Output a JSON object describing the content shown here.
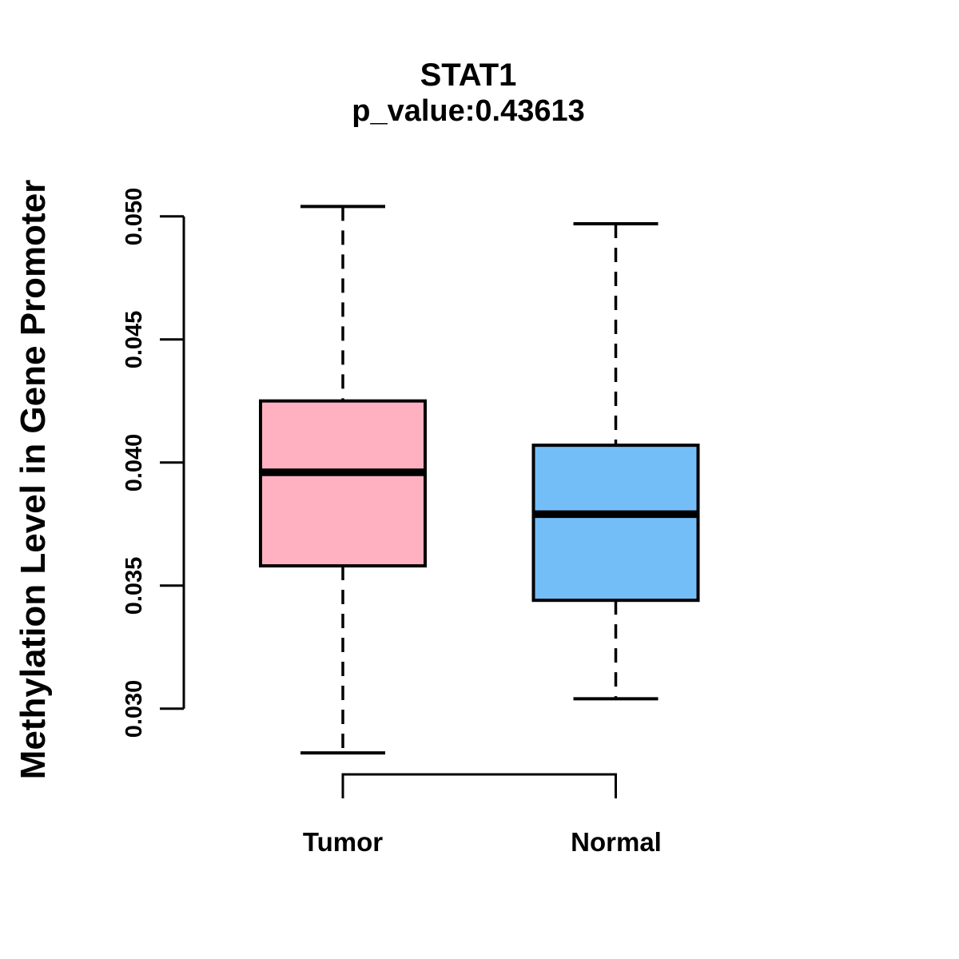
{
  "chart_data": {
    "type": "boxplot",
    "title": "STAT1",
    "subtitle": "p_value:0.43613",
    "ylabel": "Methylation Level in Gene Promoter",
    "xlabel": "",
    "categories": [
      "Tumor",
      "Normal"
    ],
    "y_tick_labels": [
      "0.030",
      "0.035",
      "0.040",
      "0.045",
      "0.050"
    ],
    "y_tick_values": [
      0.03,
      0.035,
      0.04,
      0.045,
      0.05
    ],
    "y_axis_range": [
      0.03,
      0.05
    ],
    "grid": false,
    "legend": "none",
    "whisker_style": "dashed",
    "series": [
      {
        "name": "Tumor",
        "color": "#FFB1C1",
        "lower_whisker": 0.0282,
        "q1": 0.0358,
        "median": 0.0396,
        "q3": 0.0425,
        "upper_whisker": 0.0504
      },
      {
        "name": "Normal",
        "color": "#74BEF8",
        "lower_whisker": 0.0304,
        "q1": 0.0344,
        "median": 0.0379,
        "q3": 0.0407,
        "upper_whisker": 0.0497
      }
    ],
    "box_border_color": "#000000",
    "median_color": "#000000",
    "text_color": "#000000"
  }
}
